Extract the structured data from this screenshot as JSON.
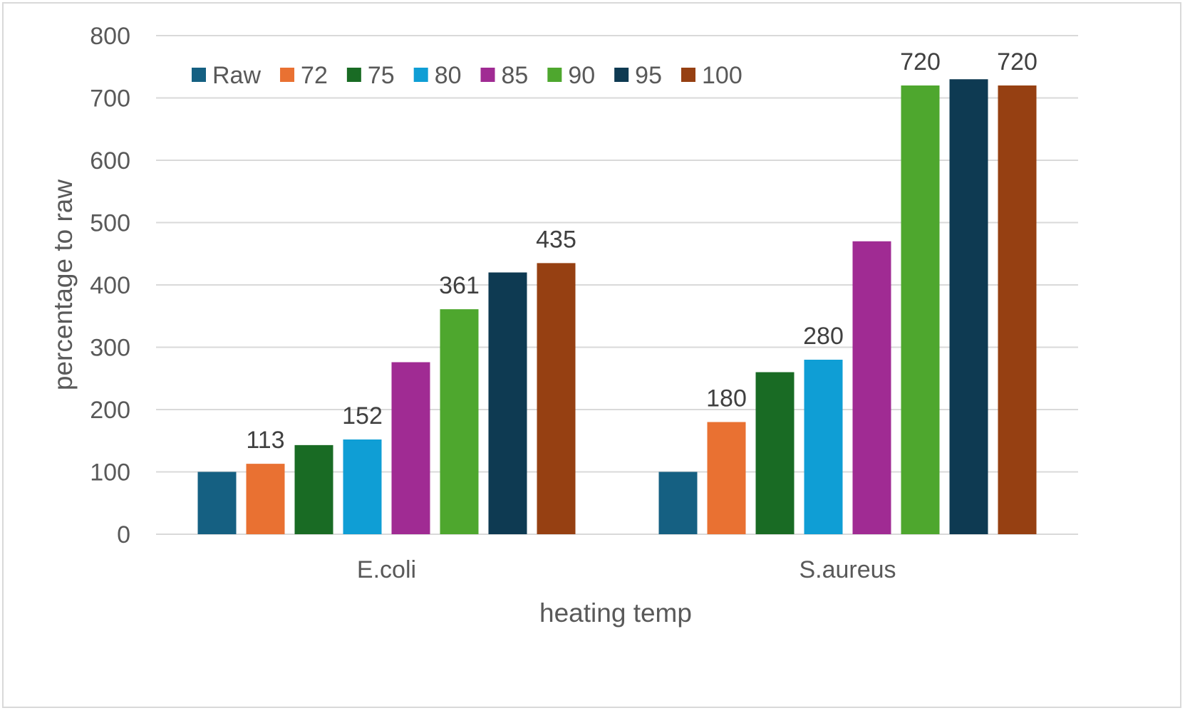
{
  "chart_data": {
    "type": "bar",
    "title": "",
    "xlabel": "heating temp",
    "ylabel": "percentage to raw",
    "ylim": [
      0,
      800
    ],
    "yticks": [
      0,
      100,
      200,
      300,
      400,
      500,
      600,
      700,
      800
    ],
    "grid": true,
    "legend_position": "top-left",
    "categories": [
      "E.coli",
      "S.aureus"
    ],
    "series": [
      {
        "name": "Raw",
        "color": "#156082",
        "values": [
          100,
          100
        ],
        "labels": [
          null,
          null
        ]
      },
      {
        "name": "72",
        "color": "#E97132",
        "values": [
          113,
          180
        ],
        "labels": [
          "113",
          "180"
        ]
      },
      {
        "name": "75",
        "color": "#196B24",
        "values": [
          143,
          260
        ],
        "labels": [
          null,
          null
        ]
      },
      {
        "name": "80",
        "color": "#0F9ED5",
        "values": [
          152,
          280
        ],
        "labels": [
          "152",
          "280"
        ]
      },
      {
        "name": "85",
        "color": "#A02B93",
        "values": [
          276,
          470
        ],
        "labels": [
          null,
          null
        ]
      },
      {
        "name": "90",
        "color": "#4EA72E",
        "values": [
          361,
          720
        ],
        "labels": [
          "361",
          "720"
        ]
      },
      {
        "name": "95",
        "color": "#0E3A52",
        "values": [
          420,
          730
        ],
        "labels": [
          null,
          null
        ]
      },
      {
        "name": "100",
        "color": "#964012",
        "values": [
          435,
          720
        ],
        "labels": [
          "435",
          "720"
        ]
      }
    ]
  }
}
